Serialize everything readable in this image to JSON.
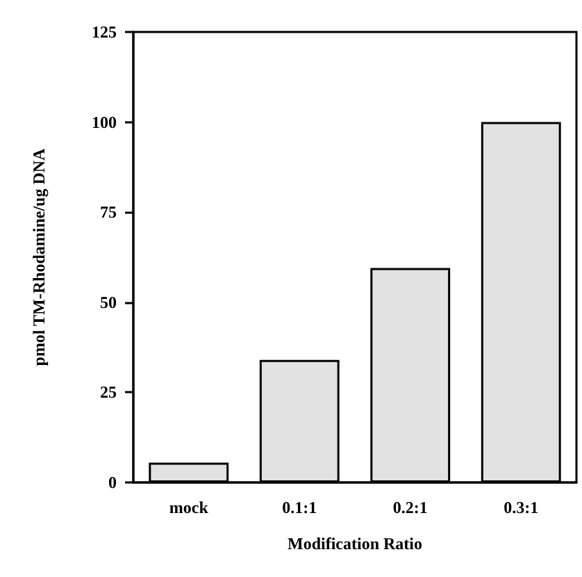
{
  "chart_data": {
    "type": "bar",
    "xlabel": "Modification Ratio",
    "ylabel": "pmol TM-Rhodamine/ug DNA",
    "categories": [
      "mock",
      "0.1:1",
      "0.2:1",
      "0.3:1"
    ],
    "values": [
      5.5,
      34,
      59.5,
      100
    ],
    "color": "#e2e2e2",
    "ylim": [
      0,
      125
    ],
    "yticks": [
      0,
      25,
      50,
      75,
      100,
      125
    ],
    "grid": false
  }
}
